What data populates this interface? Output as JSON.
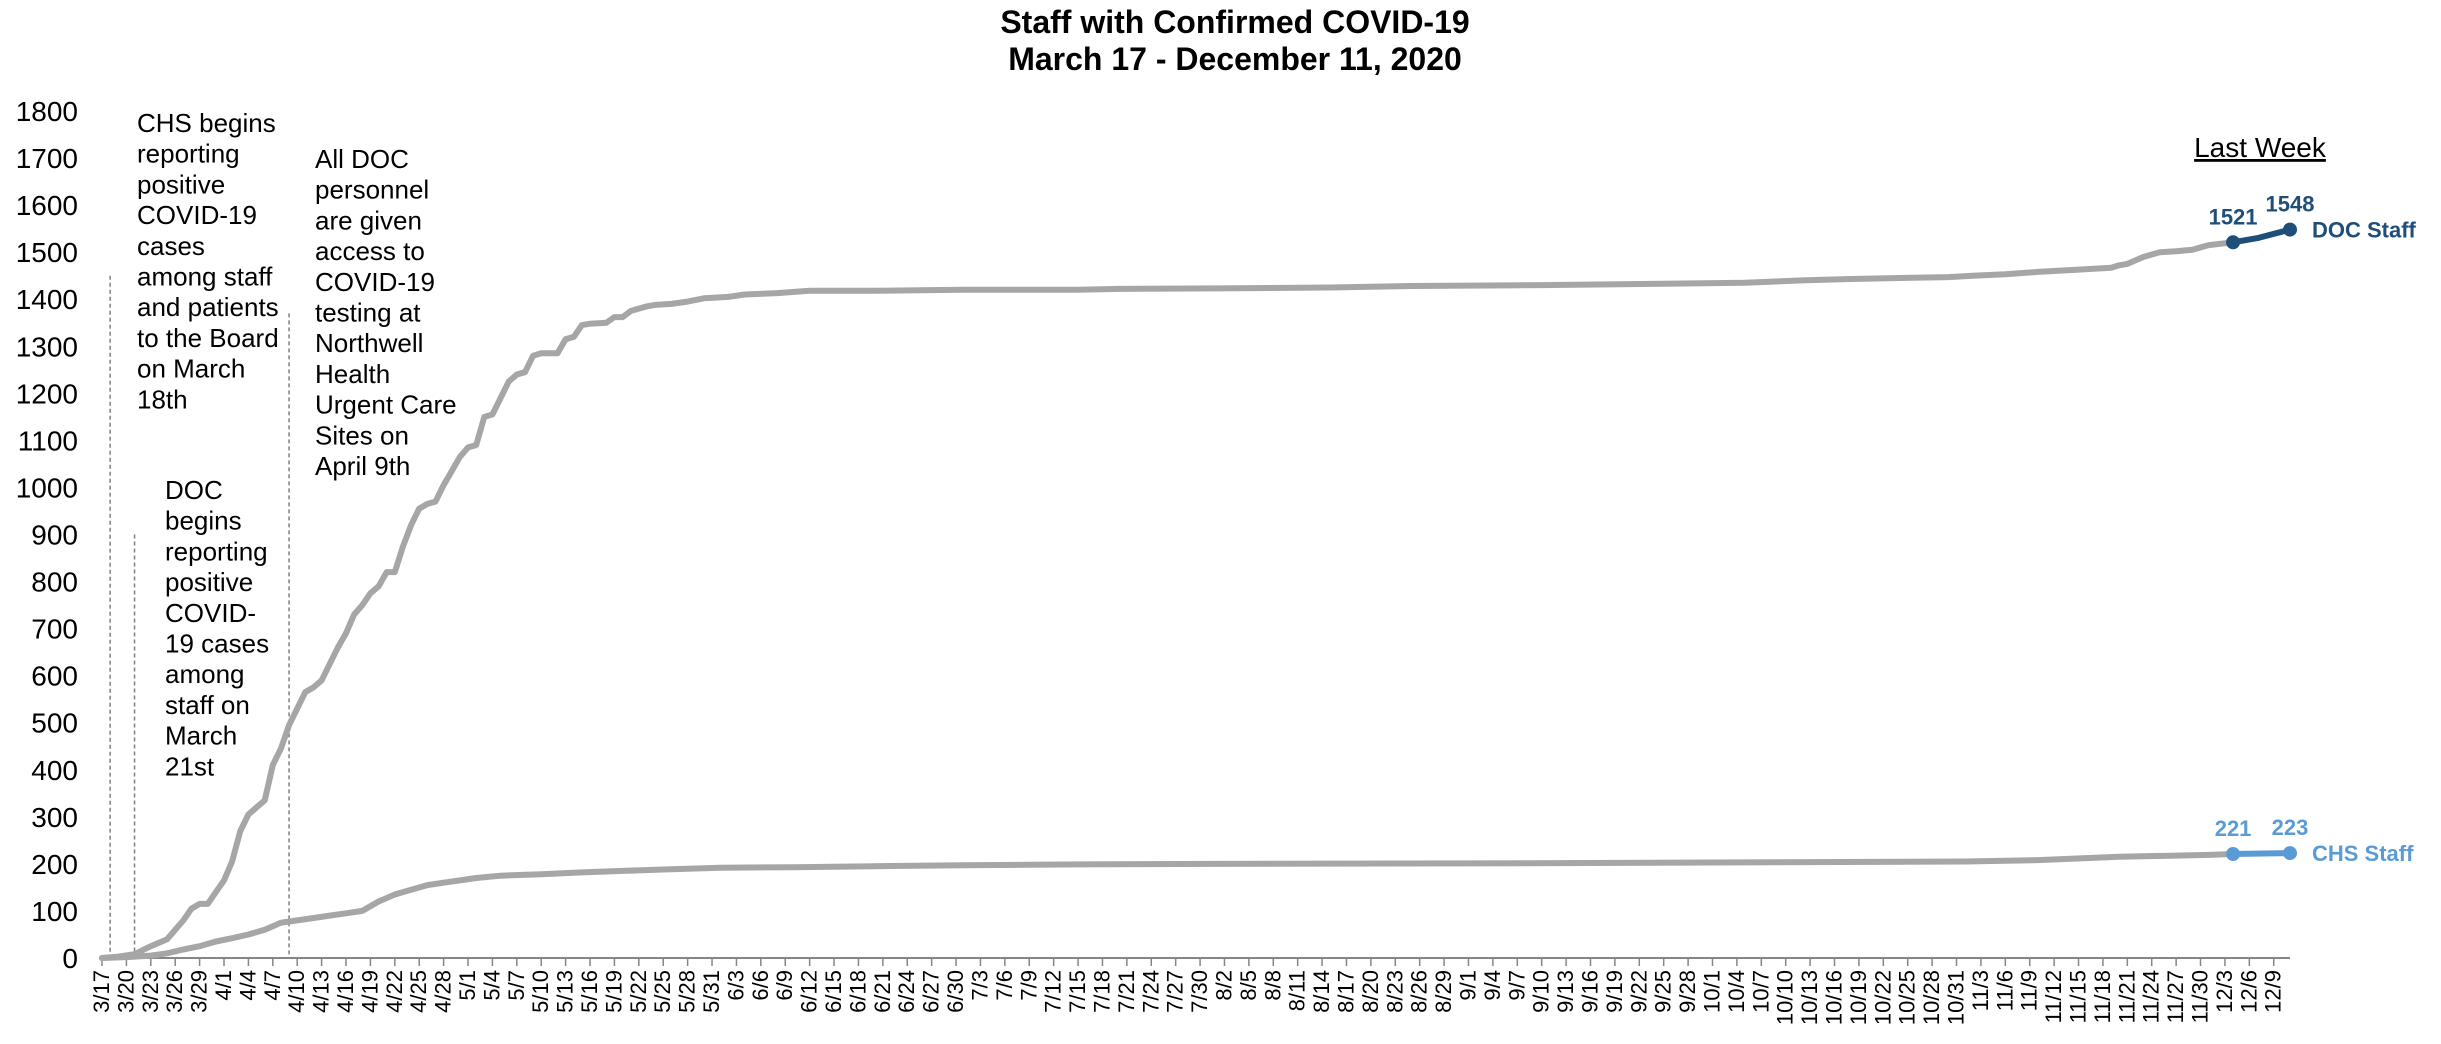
{
  "chart_data": {
    "type": "line",
    "title": "Staff with Confirmed COVID-19",
    "subtitle": "March 17 - December 11, 2020",
    "ylim": [
      0,
      1800
    ],
    "yticks": [
      0,
      100,
      200,
      300,
      400,
      500,
      600,
      700,
      800,
      900,
      1000,
      1100,
      1200,
      1300,
      1400,
      1500,
      1600,
      1700,
      1800
    ],
    "xlim": [
      "2020-03-17",
      "2020-12-11"
    ],
    "xtick_labels": [
      "3/17",
      "3/20",
      "3/23",
      "3/26",
      "3/29",
      "4/1",
      "4/4",
      "4/7",
      "4/10",
      "4/13",
      "4/16",
      "4/19",
      "4/22",
      "4/25",
      "4/28",
      "5/1",
      "5/4",
      "5/7",
      "5/10",
      "5/13",
      "5/16",
      "5/19",
      "5/22",
      "5/25",
      "5/28",
      "5/31",
      "6/3",
      "6/6",
      "6/9",
      "6/12",
      "6/15",
      "6/18",
      "6/21",
      "6/24",
      "6/27",
      "6/30",
      "7/3",
      "7/6",
      "7/9",
      "7/12",
      "7/15",
      "7/18",
      "7/21",
      "7/24",
      "7/27",
      "7/30",
      "8/2",
      "8/5",
      "8/8",
      "8/11",
      "8/14",
      "8/17",
      "8/20",
      "8/23",
      "8/26",
      "8/29",
      "9/1",
      "9/4",
      "9/7",
      "9/10",
      "9/13",
      "9/16",
      "9/19",
      "9/22",
      "9/25",
      "9/28",
      "10/1",
      "10/4",
      "10/7",
      "10/10",
      "10/13",
      "10/16",
      "10/19",
      "10/22",
      "10/25",
      "10/28",
      "10/31",
      "11/3",
      "11/6",
      "11/9",
      "11/12",
      "11/15",
      "11/18",
      "11/21",
      "11/24",
      "11/27",
      "11/30",
      "12/3",
      "12/6",
      "12/9"
    ],
    "grid": false,
    "series": [
      {
        "name": "DOC Staff",
        "color": "#a6a6a6",
        "highlight_color": "#1f4e79",
        "points": [
          [
            "2020-03-17",
            0
          ],
          [
            "2020-03-19",
            3
          ],
          [
            "2020-03-21",
            8
          ],
          [
            "2020-03-23",
            25
          ],
          [
            "2020-03-25",
            40
          ],
          [
            "2020-03-27",
            80
          ],
          [
            "2020-03-28",
            105
          ],
          [
            "2020-03-29",
            115
          ],
          [
            "2020-03-30",
            115
          ],
          [
            "2020-04-01",
            165
          ],
          [
            "2020-04-02",
            205
          ],
          [
            "2020-04-03",
            270
          ],
          [
            "2020-04-04",
            305
          ],
          [
            "2020-04-05",
            320
          ],
          [
            "2020-04-06",
            335
          ],
          [
            "2020-04-07",
            410
          ],
          [
            "2020-04-08",
            445
          ],
          [
            "2020-04-09",
            495
          ],
          [
            "2020-04-10",
            530
          ],
          [
            "2020-04-11",
            565
          ],
          [
            "2020-04-12",
            575
          ],
          [
            "2020-04-13",
            590
          ],
          [
            "2020-04-14",
            625
          ],
          [
            "2020-04-15",
            660
          ],
          [
            "2020-04-16",
            690
          ],
          [
            "2020-04-17",
            730
          ],
          [
            "2020-04-18",
            750
          ],
          [
            "2020-04-19",
            775
          ],
          [
            "2020-04-20",
            790
          ],
          [
            "2020-04-21",
            820
          ],
          [
            "2020-04-22",
            820
          ],
          [
            "2020-04-23",
            875
          ],
          [
            "2020-04-24",
            920
          ],
          [
            "2020-04-25",
            955
          ],
          [
            "2020-04-26",
            965
          ],
          [
            "2020-04-27",
            970
          ],
          [
            "2020-04-28",
            1005
          ],
          [
            "2020-04-29",
            1035
          ],
          [
            "2020-04-30",
            1065
          ],
          [
            "2020-05-01",
            1085
          ],
          [
            "2020-05-02",
            1090
          ],
          [
            "2020-05-03",
            1150
          ],
          [
            "2020-05-04",
            1155
          ],
          [
            "2020-05-05",
            1190
          ],
          [
            "2020-05-06",
            1225
          ],
          [
            "2020-05-07",
            1240
          ],
          [
            "2020-05-08",
            1245
          ],
          [
            "2020-05-09",
            1280
          ],
          [
            "2020-05-10",
            1285
          ],
          [
            "2020-05-12",
            1285
          ],
          [
            "2020-05-13",
            1315
          ],
          [
            "2020-05-14",
            1320
          ],
          [
            "2020-05-15",
            1345
          ],
          [
            "2020-05-16",
            1348
          ],
          [
            "2020-05-18",
            1350
          ],
          [
            "2020-05-19",
            1362
          ],
          [
            "2020-05-20",
            1362
          ],
          [
            "2020-05-21",
            1375
          ],
          [
            "2020-05-22",
            1380
          ],
          [
            "2020-05-23",
            1385
          ],
          [
            "2020-05-24",
            1388
          ],
          [
            "2020-05-26",
            1390
          ],
          [
            "2020-05-28",
            1395
          ],
          [
            "2020-05-30",
            1402
          ],
          [
            "2020-06-02",
            1405
          ],
          [
            "2020-06-04",
            1410
          ],
          [
            "2020-06-08",
            1413
          ],
          [
            "2020-06-12",
            1418
          ],
          [
            "2020-06-20",
            1418
          ],
          [
            "2020-07-01",
            1420
          ],
          [
            "2020-07-15",
            1420
          ],
          [
            "2020-07-20",
            1422
          ],
          [
            "2020-08-01",
            1423
          ],
          [
            "2020-08-15",
            1425
          ],
          [
            "2020-08-25",
            1428
          ],
          [
            "2020-09-10",
            1430
          ],
          [
            "2020-09-25",
            1433
          ],
          [
            "2020-10-05",
            1435
          ],
          [
            "2020-10-12",
            1440
          ],
          [
            "2020-10-18",
            1443
          ],
          [
            "2020-10-24",
            1445
          ],
          [
            "2020-10-30",
            1447
          ],
          [
            "2020-11-02",
            1450
          ],
          [
            "2020-11-06",
            1453
          ],
          [
            "2020-11-10",
            1458
          ],
          [
            "2020-11-15",
            1463
          ],
          [
            "2020-11-19",
            1467
          ],
          [
            "2020-11-20",
            1472
          ],
          [
            "2020-11-21",
            1475
          ],
          [
            "2020-11-23",
            1490
          ],
          [
            "2020-11-25",
            1500
          ],
          [
            "2020-11-27",
            1502
          ],
          [
            "2020-11-29",
            1505
          ],
          [
            "2020-12-01",
            1515
          ],
          [
            "2020-12-04",
            1521
          ]
        ],
        "last_week": [
          [
            "2020-12-04",
            1521
          ],
          [
            "2020-12-07",
            1530
          ],
          [
            "2020-12-11",
            1548
          ]
        ],
        "last_week_labels": [
          "1521",
          "1548"
        ]
      },
      {
        "name": "CHS Staff",
        "color": "#a6a6a6",
        "highlight_color": "#5b9bd5",
        "points": [
          [
            "2020-03-17",
            0
          ],
          [
            "2020-03-20",
            2
          ],
          [
            "2020-03-23",
            5
          ],
          [
            "2020-03-25",
            10
          ],
          [
            "2020-03-27",
            18
          ],
          [
            "2020-03-29",
            25
          ],
          [
            "2020-03-31",
            35
          ],
          [
            "2020-04-02",
            42
          ],
          [
            "2020-04-04",
            50
          ],
          [
            "2020-04-06",
            60
          ],
          [
            "2020-04-08",
            75
          ],
          [
            "2020-04-10",
            80
          ],
          [
            "2020-04-12",
            85
          ],
          [
            "2020-04-14",
            90
          ],
          [
            "2020-04-16",
            95
          ],
          [
            "2020-04-18",
            100
          ],
          [
            "2020-04-20",
            120
          ],
          [
            "2020-04-22",
            135
          ],
          [
            "2020-04-24",
            145
          ],
          [
            "2020-04-26",
            155
          ],
          [
            "2020-04-28",
            160
          ],
          [
            "2020-04-30",
            165
          ],
          [
            "2020-05-02",
            170
          ],
          [
            "2020-05-05",
            175
          ],
          [
            "2020-05-10",
            178
          ],
          [
            "2020-05-15",
            182
          ],
          [
            "2020-05-20",
            185
          ],
          [
            "2020-05-25",
            188
          ],
          [
            "2020-06-01",
            192
          ],
          [
            "2020-06-10",
            193
          ],
          [
            "2020-06-20",
            195
          ],
          [
            "2020-07-01",
            197
          ],
          [
            "2020-07-15",
            199
          ],
          [
            "2020-08-01",
            200
          ],
          [
            "2020-09-01",
            201
          ],
          [
            "2020-10-01",
            203
          ],
          [
            "2020-11-01",
            205
          ],
          [
            "2020-11-10",
            208
          ],
          [
            "2020-11-20",
            215
          ],
          [
            "2020-12-01",
            219
          ],
          [
            "2020-12-04",
            221
          ]
        ],
        "last_week": [
          [
            "2020-12-04",
            221
          ],
          [
            "2020-12-11",
            223
          ]
        ],
        "last_week_labels": [
          "221",
          "223"
        ]
      }
    ],
    "annotations": [
      {
        "name": "chs-reporting-note",
        "date": "2020-03-18",
        "line_top": 1450,
        "lines": [
          "CHS begins",
          "reporting",
          "positive",
          "COVID-19",
          "cases",
          "among staff",
          "and patients",
          "to the Board",
          "on March",
          "18th"
        ]
      },
      {
        "name": "doc-reporting-note",
        "date": "2020-03-21",
        "line_top": 900,
        "lines": [
          "DOC",
          "begins",
          "reporting",
          "positive",
          "COVID-",
          "19 cases",
          "among",
          "staff on",
          "March",
          "21st"
        ]
      },
      {
        "name": "testing-access-note",
        "date": "2020-04-09",
        "line_top": 1370,
        "lines": [
          "All DOC",
          "personnel",
          "are given",
          "access to",
          "COVID-19",
          "testing at",
          "Northwell",
          "Health",
          "Urgent Care",
          "Sites on",
          "April 9th"
        ]
      }
    ],
    "last_week_header": "Last Week"
  }
}
